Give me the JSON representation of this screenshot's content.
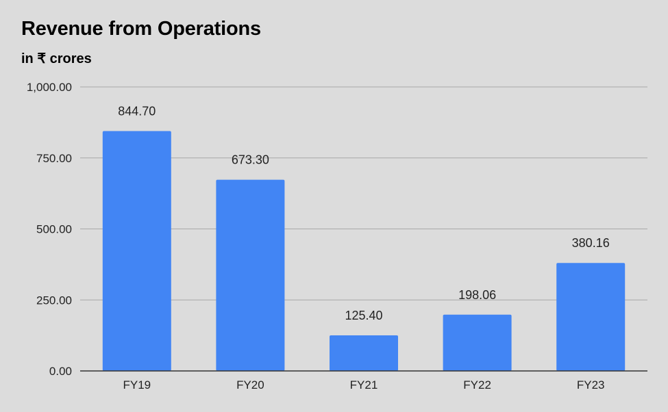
{
  "chart_data": {
    "type": "bar",
    "title": "Revenue from Operations",
    "subtitle": "in ₹ crores",
    "categories": [
      "FY19",
      "FY20",
      "FY21",
      "FY22",
      "FY23"
    ],
    "values": [
      844.7,
      673.3,
      125.4,
      198.06,
      380.16
    ],
    "data_labels": [
      "844.70",
      "673.30",
      "125.40",
      "198.06",
      "380.16"
    ],
    "yticks": [
      0,
      250,
      500,
      750,
      1000
    ],
    "ytick_labels": [
      "0.00",
      "250.00",
      "500.00",
      "750.00",
      "1,000.00"
    ],
    "ylim": [
      0,
      1000
    ],
    "grid": true,
    "legend": "none",
    "colors": {
      "bar": "#4285f4",
      "grid": "#a8a8a8",
      "axis": "#333333",
      "background": "#dcdcdc"
    }
  }
}
